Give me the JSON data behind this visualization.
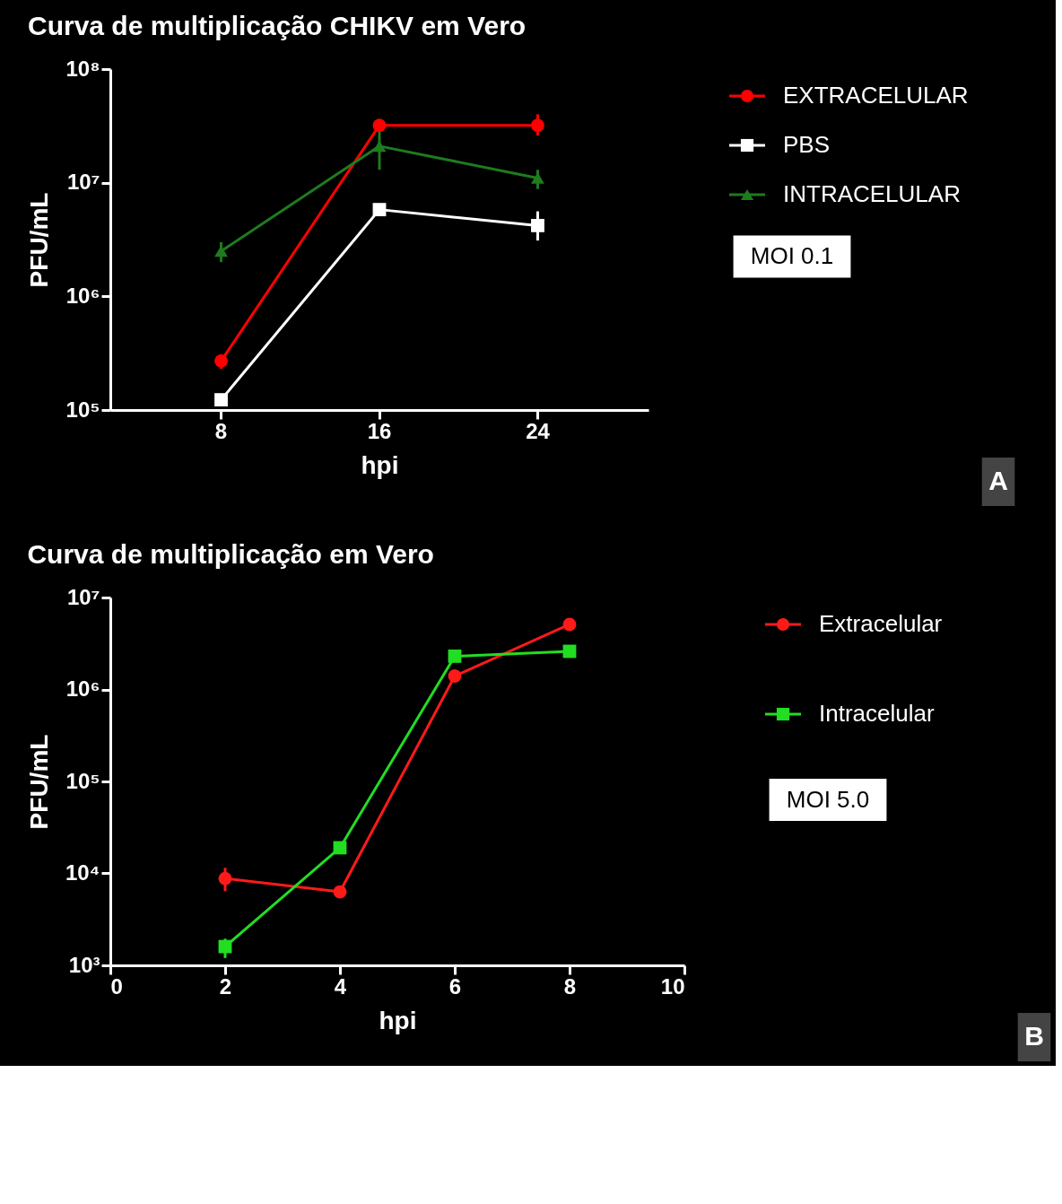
{
  "chart_data": [
    {
      "type": "line",
      "title": "Curva de multiplicação CHIKV em Vero",
      "xlabel": "hpi",
      "ylabel": "PFU/mL",
      "categories": [
        "8",
        "16",
        "24"
      ],
      "log": true,
      "ylim": [
        100000,
        100000000
      ],
      "yticks": [
        {
          "value": 100000,
          "label": "10⁵"
        },
        {
          "value": 1000000,
          "label": "10⁶"
        },
        {
          "value": 10000000,
          "label": "10⁷"
        },
        {
          "value": 100000000,
          "label": "10⁸"
        }
      ],
      "grid": false,
      "legend": "right",
      "annotations": [
        "MOI 0.1",
        "A"
      ],
      "series": [
        {
          "name": "EXTRACELULAR",
          "color": "#ff0000",
          "marker": "circle",
          "values": [
            270000,
            32000000,
            32000000
          ],
          "errors": [
            [
              230000,
              310000
            ],
            null,
            [
              26000000,
              40000000
            ]
          ]
        },
        {
          "name": "PBS",
          "color": "#ffffff",
          "marker": "square",
          "values": [
            123000,
            5800000,
            4200000
          ],
          "errors": [
            null,
            null,
            [
              3100000,
              5600000
            ]
          ]
        },
        {
          "name": "INTRACELULAR",
          "color": "#1e7b1e",
          "marker": "triangle",
          "values": [
            2500000,
            21000000,
            11000000
          ],
          "errors": [
            [
              2000000,
              3000000
            ],
            [
              13000000,
              28000000
            ],
            [
              8800000,
              13000000
            ]
          ]
        }
      ]
    },
    {
      "type": "line",
      "title": "Curva de multiplicação em Vero",
      "xlabel": "hpi",
      "ylabel": "PFU/mL",
      "x": [
        2,
        4,
        6,
        8
      ],
      "xlim": [
        0,
        10
      ],
      "xticks": [
        0,
        2,
        4,
        6,
        8,
        10
      ],
      "log": true,
      "ylim": [
        1000,
        10000000
      ],
      "yticks": [
        {
          "value": 1000,
          "label": "10³"
        },
        {
          "value": 10000,
          "label": "10⁴"
        },
        {
          "value": 100000,
          "label": "10⁵"
        },
        {
          "value": 1000000,
          "label": "10⁶"
        },
        {
          "value": 10000000,
          "label": "10⁷"
        }
      ],
      "grid": false,
      "legend": "right",
      "annotations": [
        "MOI 5.0",
        "B"
      ],
      "series": [
        {
          "name": "Extracelular",
          "color": "#ff1a1a",
          "marker": "circle",
          "values": [
            8800,
            6300,
            1400000,
            5100000
          ],
          "errors": [
            [
              6400,
              11500
            ],
            null,
            null,
            null
          ]
        },
        {
          "name": "Intracelular",
          "color": "#22dd22",
          "marker": "square",
          "values": [
            1600,
            19000,
            2300000,
            2600000
          ],
          "errors": [
            [
              1200,
              1950
            ],
            null,
            null,
            null
          ]
        }
      ]
    }
  ]
}
